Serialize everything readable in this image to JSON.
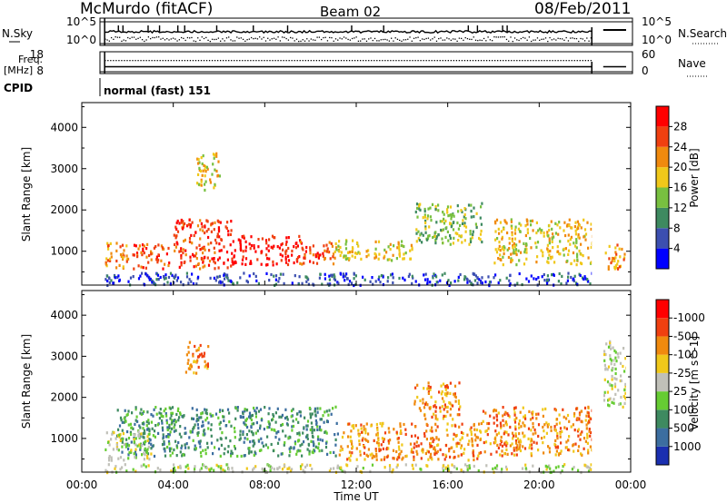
{
  "header": {
    "station": "McMurdo (fitACF)",
    "beam": "Beam 02",
    "date": "08/Feb/2011"
  },
  "top_strip": {
    "nsky_label": "N.Sky",
    "nsky_tick_hi": "10^5",
    "nsky_tick_lo": "10^0",
    "nsearch_label": "N.Search",
    "nsearch_tick_hi": "10^5",
    "nsearch_tick_lo": "10^0",
    "freq_label_1": "Freq.",
    "freq_label_2": "[MHz]",
    "freq_tick_hi": "18",
    "freq_tick_lo": "8",
    "nave_label": "Nave",
    "nave_tick_hi": "60",
    "nave_tick_lo": "0",
    "cpid_label": "CPID",
    "cpid_value": "normal (fast) 151"
  },
  "chart_data": [
    {
      "type": "heatmap",
      "title": "",
      "xlabel": "Time UT",
      "ylabel": "Slant Range [km]",
      "x_ticks": [
        "00:00",
        "04:00",
        "08:00",
        "12:00",
        "16:00",
        "20:00",
        "00:00"
      ],
      "y_ticks": [
        1000,
        2000,
        3000,
        4000
      ],
      "ylim": [
        180,
        4600
      ],
      "colorbar": {
        "label": "Power [dB]",
        "ticks": [
          "4",
          "8",
          "12",
          "16",
          "20",
          "24",
          "28"
        ],
        "colors": [
          "#0000ff",
          "#3c4fb0",
          "#3e8a60",
          "#78c040",
          "#f0c81a",
          "#f08a0e",
          "#f04010",
          "#ff0000"
        ]
      },
      "regions": [
        {
          "t0": 1.0,
          "t1": 22.3,
          "r0": 200,
          "r1": 500,
          "level": 1
        },
        {
          "t0": 1.0,
          "t1": 2.0,
          "r0": 600,
          "r1": 1300,
          "level": 5
        },
        {
          "t0": 2.2,
          "t1": 3.8,
          "r0": 600,
          "r1": 1200,
          "level": 6
        },
        {
          "t0": 4.0,
          "t1": 6.5,
          "r0": 600,
          "r1": 1800,
          "level": 6
        },
        {
          "t0": 6.5,
          "t1": 9.5,
          "r0": 700,
          "r1": 1400,
          "level": 7
        },
        {
          "t0": 9.5,
          "t1": 11.0,
          "r0": 700,
          "r1": 1300,
          "level": 6
        },
        {
          "t0": 11.0,
          "t1": 14.5,
          "r0": 800,
          "r1": 1300,
          "level": 4
        },
        {
          "t0": 14.5,
          "t1": 17.5,
          "r0": 1200,
          "r1": 2200,
          "level": 3
        },
        {
          "t0": 18.0,
          "t1": 22.3,
          "r0": 700,
          "r1": 1800,
          "level": 4
        },
        {
          "t0": 5.0,
          "t1": 6.0,
          "r0": 2500,
          "r1": 3400,
          "level": 4
        },
        {
          "t0": 22.8,
          "t1": 23.8,
          "r0": 600,
          "r1": 1200,
          "level": 5
        }
      ]
    },
    {
      "type": "heatmap",
      "title": "",
      "xlabel": "Time UT",
      "ylabel": "Slant Range [km]",
      "x_ticks": [
        "00:00",
        "04:00",
        "08:00",
        "12:00",
        "16:00",
        "20:00",
        "00:00"
      ],
      "y_ticks": [
        1000,
        2000,
        3000,
        4000
      ],
      "ylim": [
        180,
        4600
      ],
      "colorbar": {
        "label": "Velocity [m s^-1]",
        "ticks": [
          "1000",
          "500",
          "100",
          "25",
          "-25",
          "-100",
          "-500",
          "-1000"
        ],
        "colors": [
          "#1a2fb0",
          "#3c6ea0",
          "#3e8a60",
          "#66cc33",
          "#c0c0b8",
          "#f0c81a",
          "#f08a0e",
          "#f04010",
          "#ff0000"
        ]
      },
      "regions": [
        {
          "t0": 1.5,
          "t1": 11.2,
          "r0": 600,
          "r1": 1800,
          "level": 2
        },
        {
          "t0": 1.0,
          "t1": 3.0,
          "r0": 500,
          "r1": 1200,
          "level": 4
        },
        {
          "t0": 11.2,
          "t1": 17.5,
          "r0": 500,
          "r1": 1400,
          "level": 6
        },
        {
          "t0": 17.5,
          "t1": 22.3,
          "r0": 600,
          "r1": 1800,
          "level": 6
        },
        {
          "t0": 14.5,
          "t1": 16.5,
          "r0": 1500,
          "r1": 2400,
          "level": 6
        },
        {
          "t0": 4.5,
          "t1": 5.5,
          "r0": 2600,
          "r1": 3400,
          "level": 6
        },
        {
          "t0": 1.0,
          "t1": 22.3,
          "r0": 200,
          "r1": 400,
          "level": 4
        },
        {
          "t0": 22.8,
          "t1": 23.8,
          "r0": 1800,
          "r1": 3400,
          "level": 4
        }
      ]
    }
  ]
}
